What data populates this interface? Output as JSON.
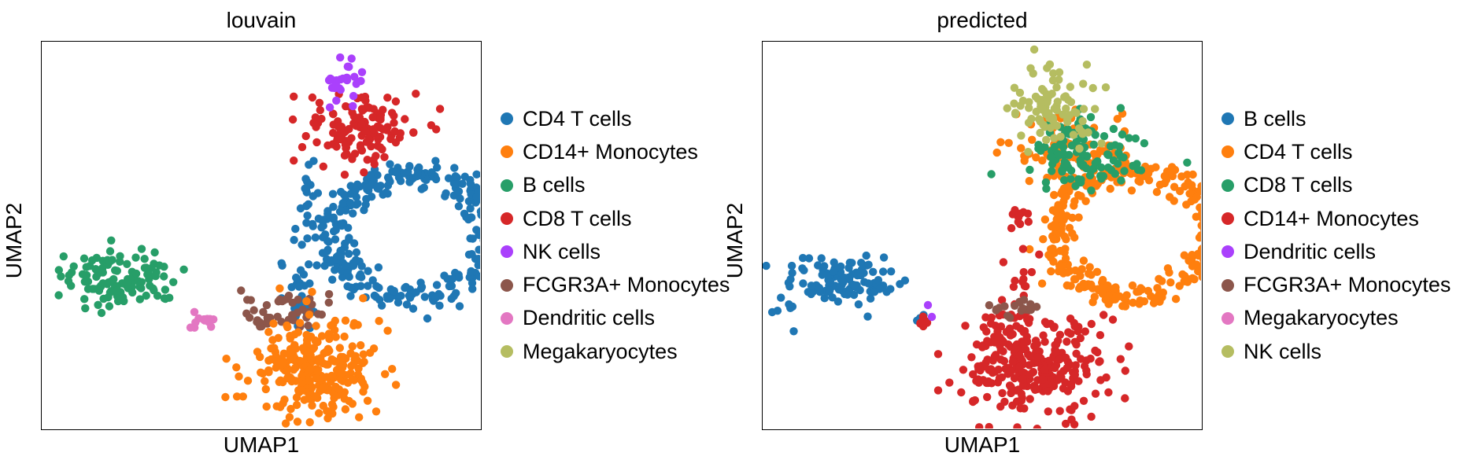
{
  "chart_data": [
    {
      "type": "scatter",
      "title": "louvain",
      "xlabel": "UMAP1",
      "ylabel": "UMAP2",
      "grid": false,
      "legend_placement": "right-outside",
      "series": [
        {
          "name": "CD4 T cells",
          "color": "#1f77b4"
        },
        {
          "name": "CD14+ Monocytes",
          "color": "#ff7f0e"
        },
        {
          "name": "B cells",
          "color": "#279e68"
        },
        {
          "name": "CD8 T cells",
          "color": "#d62728"
        },
        {
          "name": "NK cells",
          "color": "#aa40fc"
        },
        {
          "name": "FCGR3A+ Monocytes",
          "color": "#8c564b"
        },
        {
          "name": "Dendritic cells",
          "color": "#e377c2"
        },
        {
          "name": "Megakaryocytes",
          "color": "#b5bd61"
        }
      ]
    },
    {
      "type": "scatter",
      "title": "predicted",
      "xlabel": "UMAP1",
      "ylabel": "UMAP2",
      "grid": false,
      "legend_placement": "right-outside",
      "series": [
        {
          "name": "B cells",
          "color": "#1f77b4"
        },
        {
          "name": "CD4 T cells",
          "color": "#ff7f0e"
        },
        {
          "name": "CD8 T cells",
          "color": "#279e68"
        },
        {
          "name": "CD14+ Monocytes",
          "color": "#d62728"
        },
        {
          "name": "Dendritic cells",
          "color": "#aa40fc"
        },
        {
          "name": "FCGR3A+ Monocytes",
          "color": "#8c564b"
        },
        {
          "name": "Megakaryocytes",
          "color": "#e377c2"
        },
        {
          "name": "NK cells",
          "color": "#b5bd61"
        }
      ]
    }
  ]
}
